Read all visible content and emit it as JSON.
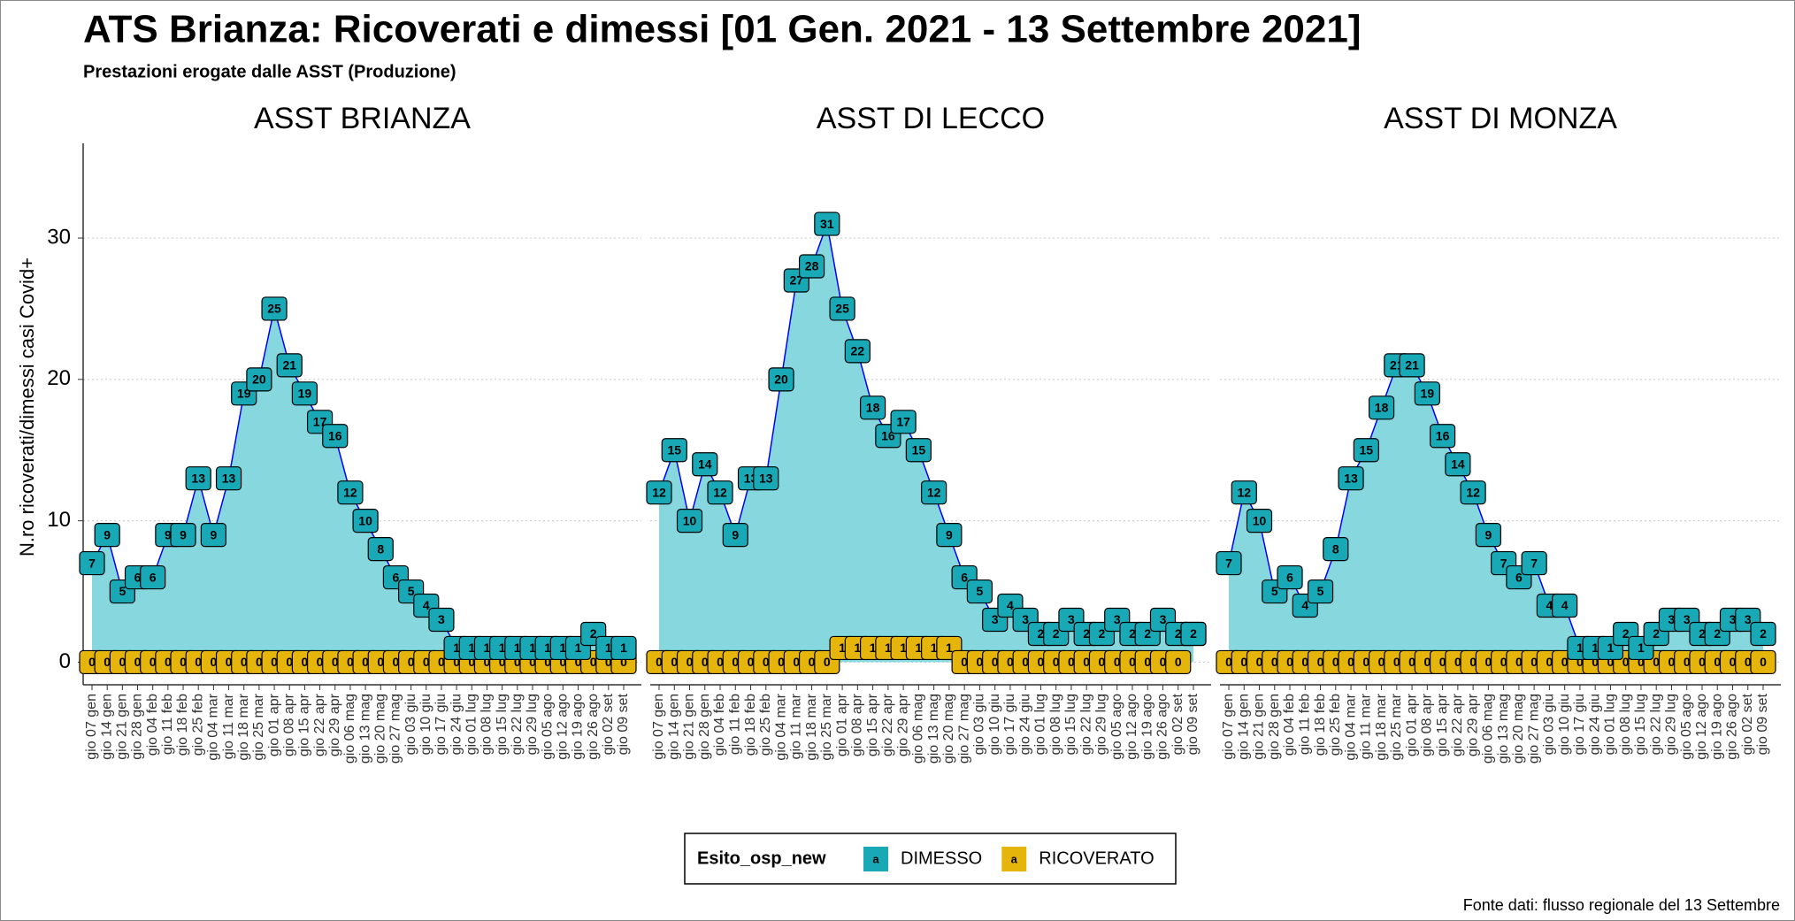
{
  "title": "ATS Brianza: Ricoverati e dimessi [01 Gen. 2021 - 13 Settembre 2021]",
  "subtitle": "Prestazioni erogate dalle ASST (Produzione)",
  "ylabel": "N.ro ricoverati/dimessi casi Covid+",
  "legend": {
    "title": "Esito_osp_new",
    "glyph": "a"
  },
  "source": "Fonte dati: flusso regionale del 13 Settembre",
  "chart_data": [
    {
      "type": "line",
      "title": "ASST BRIANZA",
      "categories": [
        "gio 07 gen",
        "gio 14 gen",
        "gio 21 gen",
        "gio 28 gen",
        "gio 04 feb",
        "gio 11 feb",
        "gio 18 feb",
        "gio 25 feb",
        "gio 04 mar",
        "gio 11 mar",
        "gio 18 mar",
        "gio 25 mar",
        "gio 01 apr",
        "gio 08 apr",
        "gio 15 apr",
        "gio 22 apr",
        "gio 29 apr",
        "gio 06 mag",
        "gio 13 mag",
        "gio 20 mag",
        "gio 27 mag",
        "gio 03 giu",
        "gio 10 giu",
        "gio 17 giu",
        "gio 24 giu",
        "gio 01 lug",
        "gio 08 lug",
        "gio 15 lug",
        "gio 22 lug",
        "gio 29 lug",
        "gio 05 ago",
        "gio 12 ago",
        "gio 19 ago",
        "gio 26 ago",
        "gio 02 set",
        "gio 09 set"
      ],
      "ylim": [
        -1.6,
        36.7
      ],
      "yticks": [
        0,
        10,
        20,
        30
      ],
      "grid": true,
      "line_color": "#0000ff",
      "area_color": "#86d8de",
      "series": [
        {
          "name": "DIMESSO",
          "color": "#19a9b6",
          "values": [
            7,
            9,
            5,
            6,
            6,
            9,
            9,
            13,
            9,
            13,
            19,
            20,
            25,
            21,
            19,
            17,
            16,
            12,
            10,
            8,
            6,
            5,
            4,
            3,
            1,
            1,
            1,
            1,
            1,
            1,
            1,
            1,
            1,
            2,
            1,
            1
          ]
        },
        {
          "name": "RICOVERATO",
          "color": "#e5b50b",
          "values": [
            0,
            0,
            0,
            0,
            0,
            0,
            0,
            0,
            0,
            0,
            0,
            0,
            0,
            0,
            0,
            0,
            0,
            0,
            0,
            0,
            0,
            0,
            0,
            0,
            0,
            0,
            0,
            0,
            0,
            0,
            0,
            0,
            0,
            0,
            0,
            0
          ]
        }
      ]
    },
    {
      "type": "line",
      "title": "ASST DI LECCO",
      "categories": [
        "gio 07 gen",
        "gio 14 gen",
        "gio 21 gen",
        "gio 28 gen",
        "gio 04 feb",
        "gio 11 feb",
        "gio 18 feb",
        "gio 25 feb",
        "gio 04 mar",
        "gio 11 mar",
        "gio 18 mar",
        "gio 25 mar",
        "gio 01 apr",
        "gio 08 apr",
        "gio 15 apr",
        "gio 22 apr",
        "gio 29 apr",
        "gio 06 mag",
        "gio 13 mag",
        "gio 20 mag",
        "gio 27 mag",
        "gio 03 giu",
        "gio 10 giu",
        "gio 17 giu",
        "gio 24 giu",
        "gio 01 lug",
        "gio 08 lug",
        "gio 15 lug",
        "gio 22 lug",
        "gio 29 lug",
        "gio 05 ago",
        "gio 12 ago",
        "gio 19 ago",
        "gio 26 ago",
        "gio 02 set",
        "gio 09 set"
      ],
      "ylim": [
        -1.6,
        36.7
      ],
      "yticks": [
        0,
        10,
        20,
        30
      ],
      "grid": true,
      "line_color": "#0000ff",
      "area_color": "#86d8de",
      "series": [
        {
          "name": "DIMESSO",
          "color": "#19a9b6",
          "values": [
            12,
            15,
            10,
            14,
            12,
            9,
            13,
            13,
            20,
            27,
            28,
            31,
            25,
            22,
            18,
            16,
            17,
            15,
            12,
            9,
            6,
            5,
            3,
            4,
            3,
            2,
            2,
            3,
            2,
            2,
            3,
            2,
            2,
            3,
            2,
            2
          ]
        },
        {
          "name": "RICOVERATO",
          "color": "#e5b50b",
          "values": [
            0,
            0,
            0,
            0,
            0,
            0,
            0,
            0,
            0,
            0,
            0,
            0,
            1,
            1,
            1,
            1,
            1,
            1,
            1,
            1,
            0,
            0,
            0,
            0,
            0,
            0,
            0,
            0,
            0,
            0,
            0,
            0,
            0,
            0,
            0,
            2
          ]
        }
      ]
    },
    {
      "type": "line",
      "title": "ASST DI MONZA",
      "categories": [
        "gio 07 gen",
        "gio 14 gen",
        "gio 21 gen",
        "gio 28 gen",
        "gio 04 feb",
        "gio 11 feb",
        "gio 18 feb",
        "gio 25 feb",
        "gio 04 mar",
        "gio 11 mar",
        "gio 18 mar",
        "gio 25 mar",
        "gio 01 apr",
        "gio 08 apr",
        "gio 15 apr",
        "gio 22 apr",
        "gio 29 apr",
        "gio 06 mag",
        "gio 13 mag",
        "gio 20 mag",
        "gio 27 mag",
        "gio 03 giu",
        "gio 10 giu",
        "gio 17 giu",
        "gio 24 giu",
        "gio 01 lug",
        "gio 08 lug",
        "gio 15 lug",
        "gio 22 lug",
        "gio 29 lug",
        "gio 05 ago",
        "gio 12 ago",
        "gio 19 ago",
        "gio 26 ago",
        "gio 02 set",
        "gio 09 set"
      ],
      "ylim": [
        -1.6,
        36.7
      ],
      "yticks": [
        0,
        10,
        20,
        30
      ],
      "grid": true,
      "line_color": "#0000ff",
      "area_color": "#86d8de",
      "series": [
        {
          "name": "DIMESSO",
          "color": "#19a9b6",
          "values": [
            7,
            12,
            10,
            5,
            6,
            4,
            5,
            8,
            13,
            15,
            18,
            21,
            21,
            19,
            16,
            14,
            12,
            9,
            7,
            6,
            7,
            4,
            4,
            1,
            1,
            1,
            2,
            1,
            2,
            3,
            3,
            2,
            2,
            3,
            3,
            2
          ]
        },
        {
          "name": "RICOVERATO",
          "color": "#e5b50b",
          "values": [
            0,
            0,
            0,
            0,
            0,
            0,
            0,
            0,
            0,
            0,
            0,
            0,
            0,
            0,
            0,
            0,
            0,
            0,
            0,
            0,
            0,
            0,
            0,
            0,
            0,
            0,
            0,
            0,
            0,
            0,
            0,
            0,
            0,
            0,
            0,
            0
          ]
        }
      ]
    }
  ]
}
